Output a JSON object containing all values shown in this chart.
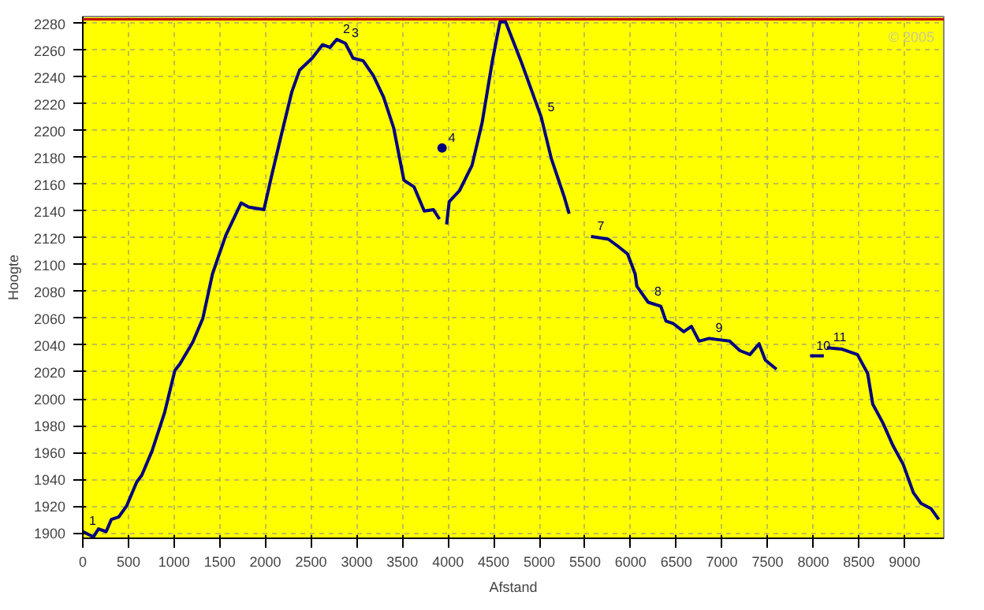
{
  "chart_data": {
    "type": "line",
    "xlabel": "Afstand",
    "ylabel": "Hoogte",
    "xlim": [
      0,
      9430
    ],
    "ylim": [
      1896,
      2285
    ],
    "xticks": [
      0,
      500,
      1000,
      1500,
      2000,
      2500,
      3000,
      3500,
      4000,
      4500,
      5000,
      5500,
      6000,
      6500,
      7000,
      7500,
      8000,
      8500,
      9000
    ],
    "yticks": [
      1900,
      1920,
      1940,
      1960,
      1980,
      2000,
      2020,
      2040,
      2060,
      2080,
      2100,
      2120,
      2140,
      2160,
      2180,
      2200,
      2220,
      2240,
      2260,
      2280
    ],
    "grid": true,
    "line_style": "solid",
    "marker": "none",
    "series": [
      {
        "color": "#000080",
        "x": [
          0,
          117,
          172,
          256,
          312,
          395,
          479,
          591,
          646,
          758,
          897,
          1008,
          1064,
          1203,
          1315,
          1420,
          1480,
          1567,
          1734,
          1817,
          1984,
          2067,
          2179,
          2290,
          2374,
          2513,
          2625,
          2708,
          2781,
          2876,
          2960,
          3071,
          3182,
          3294,
          3405,
          3517,
          3628,
          3740,
          3840,
          3907,
          3950,
          3985,
          4013,
          4124,
          4263,
          4374,
          4486,
          4569,
          4631,
          4798,
          5021,
          5132,
          5271,
          5327,
          5400,
          5566,
          5756,
          5856,
          5967,
          6050,
          6068,
          6192,
          6331,
          6387,
          6470,
          6582,
          6666,
          6750,
          6861,
          6972,
          7084,
          7195,
          7307,
          7407,
          7474,
          7597,
          7800,
          7965,
          8116,
          8140,
          8150,
          8317,
          8484,
          8596,
          8652,
          8763,
          8874,
          8986,
          9097,
          9181,
          9292,
          9375
        ],
        "values": [
          1901,
          1897,
          1903,
          1901,
          1910,
          1912,
          1920,
          1938,
          1943,
          1961,
          1990,
          2021,
          2026,
          2042,
          2060,
          2093,
          2105,
          2122,
          2146,
          2143,
          2141,
          2166,
          2198,
          2229,
          2245,
          2254,
          2264,
          2262,
          2268,
          2265,
          2254,
          2252,
          2241,
          2225,
          2202,
          2163,
          2158,
          2140,
          2141,
          2134,
          null,
          2130,
          2147,
          2155,
          2174,
          2206,
          2252,
          2281,
          2281,
          2252,
          2210,
          2179,
          2151,
          2138,
          null,
          2121,
          2119,
          2114,
          2108,
          2093,
          2084,
          2072,
          2069,
          2058,
          2056,
          2050,
          2054,
          2043,
          2045,
          2044,
          2043,
          2036,
          2033,
          2041,
          2029,
          2022,
          null,
          2032,
          2032,
          null,
          2038,
          2037,
          2033,
          2019,
          1996,
          1982,
          1965,
          1951,
          1930,
          1922,
          1918,
          1910
        ]
      },
      {
        "type": "scatter",
        "marker": "circle",
        "color": "#000080",
        "x": [
          3935
        ],
        "values": [
          2187
        ]
      }
    ],
    "ref_lines": [
      {
        "axis": "y",
        "value": 2283,
        "color": "#c00000",
        "line_style": "solid"
      }
    ],
    "annotations": [
      {
        "text": "1",
        "x": 0,
        "y": 1901
      },
      {
        "text": "2",
        "x": 2781,
        "y": 2268
      },
      {
        "text": "3",
        "x": 2876,
        "y": 2265
      },
      {
        "text": "4",
        "x": 3935,
        "y": 2187
      },
      {
        "text": "5",
        "x": 5021,
        "y": 2210
      },
      {
        "text": "7",
        "x": 5566,
        "y": 2121
      },
      {
        "text": "8",
        "x": 6192,
        "y": 2072
      },
      {
        "text": "9",
        "x": 6861,
        "y": 2045
      },
      {
        "text": "10",
        "x": 7965,
        "y": 2032
      },
      {
        "text": "11",
        "x": 8150,
        "y": 2038
      },
      "© 2005"
    ]
  }
}
